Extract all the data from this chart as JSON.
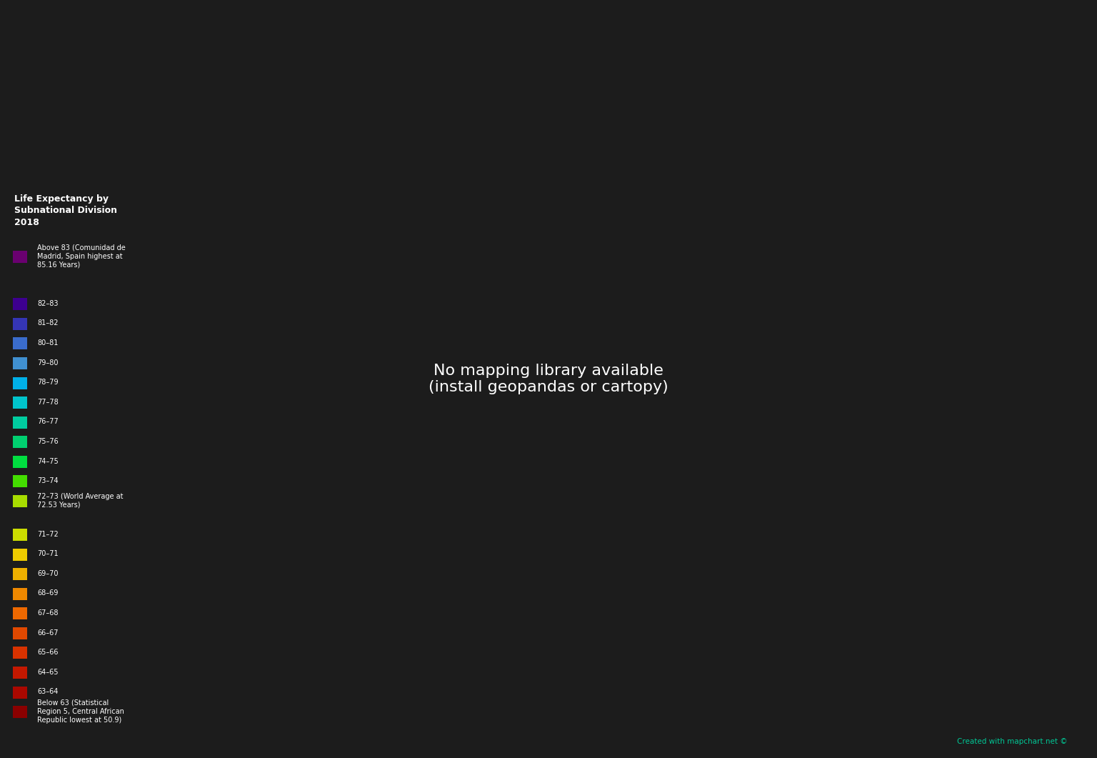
{
  "background_color": "#1c1c1c",
  "legend_title": "Life Expectancy by\nSubnational Division\n2018",
  "watermark": "Created with mapchart.net ©",
  "watermark_color": "#00c896",
  "legend_entries": [
    {
      "label": "Above 83 (Comunidad de\nMadrid, Spain highest at\n85.16 Years)",
      "color": "#6a0070"
    },
    {
      "label": "82–83",
      "color": "#3d0090"
    },
    {
      "label": "81–82",
      "color": "#3535b5"
    },
    {
      "label": "80–81",
      "color": "#3a6ccc"
    },
    {
      "label": "79–80",
      "color": "#4090d0"
    },
    {
      "label": "78–79",
      "color": "#00b0e8"
    },
    {
      "label": "77–78",
      "color": "#00c4cc"
    },
    {
      "label": "76–77",
      "color": "#00cca0"
    },
    {
      "label": "75–76",
      "color": "#00d070"
    },
    {
      "label": "74–75",
      "color": "#00dd40"
    },
    {
      "label": "73–74",
      "color": "#44dd00"
    },
    {
      "label": "72–73 (World Average at\n72.53 Years)",
      "color": "#a8dd00"
    },
    {
      "label": "71–72",
      "color": "#ccdd00"
    },
    {
      "label": "70–71",
      "color": "#eecc00"
    },
    {
      "label": "69–70",
      "color": "#eeb000"
    },
    {
      "label": "68–69",
      "color": "#ee8800"
    },
    {
      "label": "67–68",
      "color": "#ee6800"
    },
    {
      "label": "66–67",
      "color": "#e04800"
    },
    {
      "label": "65–66",
      "color": "#d83200"
    },
    {
      "label": "64–65",
      "color": "#c41800"
    },
    {
      "label": "63–64",
      "color": "#aa0800"
    },
    {
      "label": "Below 63 (Statistical\nRegion 5, Central African\nRepublic lowest at 50.9)",
      "color": "#8a0000"
    }
  ],
  "iso_colors": {
    "JPN": 0,
    "ESP": 0,
    "CHE": 0,
    "HKG": 0,
    "MAC": 0,
    "ITA": 1,
    "FRA": 1,
    "AUS": 1,
    "ISL": 1,
    "SWE": 1,
    "NOR": 1,
    "KOR": 1,
    "CAN": 2,
    "NZL": 2,
    "GBR": 2,
    "DEU": 2,
    "NLD": 2,
    "BEL": 2,
    "AUT": 2,
    "FIN": 2,
    "DNK": 2,
    "USA": 3,
    "PRT": 3,
    "GRC": 3,
    "CYP": 3,
    "MLT": 3,
    "LUX": 3,
    "IRL": 3,
    "ISR": 3,
    "SGP": 3,
    "CZE": 4,
    "POL": 4,
    "SVK": 4,
    "HUN": 4,
    "HRV": 4,
    "SVN": 4,
    "EST": 4,
    "LVA": 4,
    "LTU": 4,
    "CHL": 4,
    "CRI": 4,
    "CUB": 4,
    "ALB": 4,
    "MNE": 4,
    "SRB": 4,
    "BIH": 4,
    "MEX": 5,
    "ARG": 5,
    "URY": 5,
    "PAN": 5,
    "COL": 5,
    "BRA": 5,
    "TUR": 5,
    "CHN": 5,
    "ROU": 5,
    "BGR": 5,
    "BLR": 5,
    "UKR": 5,
    "MDA": 5,
    "GEO": 5,
    "ARM": 5,
    "AZE": 5,
    "PRK": 5,
    "MKD": 5,
    "THA": 6,
    "VNM": 6,
    "IRN": 6,
    "LBN": 6,
    "JOR": 6,
    "TUN": 6,
    "LBY": 6,
    "MAR": 6,
    "PER": 6,
    "ECU": 6,
    "VEN": 6,
    "PRY": 6,
    "BOL": 6,
    "NIC": 6,
    "HND": 6,
    "GTM": 6,
    "KAZ": 6,
    "MNG": 6,
    "SLV": 6,
    "TKM": 7,
    "UZB": 7,
    "KGZ": 7,
    "TJK": 7,
    "DZA": 7,
    "EGY": 7,
    "SAU": 7,
    "ARE": 7,
    "QAT": 7,
    "KWT": 7,
    "BHR": 7,
    "OMN": 7,
    "YEM": 7,
    "WSH": 7,
    "IND": 8,
    "IDN": 8,
    "PHL": 8,
    "MYS": 8,
    "BGD": 8,
    "NPL": 8,
    "LKA": 8,
    "PAK": 8,
    "IRQ": 8,
    "SYR": 8,
    "AFG": 8,
    "NGA": 8,
    "GHA": 8,
    "SEN": 8,
    "PSE": 8,
    "KHM": 9,
    "MMR": 9,
    "LAO": 9,
    "PNG": 9,
    "FJI": 9,
    "SDN": 9,
    "ETH": 9,
    "KEN": 9,
    "UGA": 9,
    "TZA": 9,
    "ERI": 9,
    "SOM": 9,
    "HTI": 10,
    "DOM": 10,
    "JAM": 10,
    "TTO": 10,
    "GUY": 10,
    "SUR": 10,
    "CMR": 10,
    "CIV": 10,
    "GIN": 10,
    "MLI": 21,
    "BFA": 10,
    "GMB": 10,
    "RUS": 11,
    "BLZ": 11,
    "MOZ": 11,
    "ZMB": 11,
    "MWI": 11,
    "RWA": 11,
    "BDI": 11,
    "DJI": 11,
    "COM": 11,
    "ZWE": 12,
    "NAM": 12,
    "BWA": 12,
    "ZAF": 12,
    "LSO": 12,
    "SWZ": 12,
    "GAB": 12,
    "COG": 12,
    "TGO": 12,
    "BEN": 12,
    "GNB": 12,
    "AGO": 13,
    "SLE": 13,
    "LBR": 13,
    "MRT": 13,
    "GNQ": 13,
    "COD": 14,
    "TCD": 14,
    "NER": 14,
    "CAF": 21,
    "SSD": 21
  }
}
